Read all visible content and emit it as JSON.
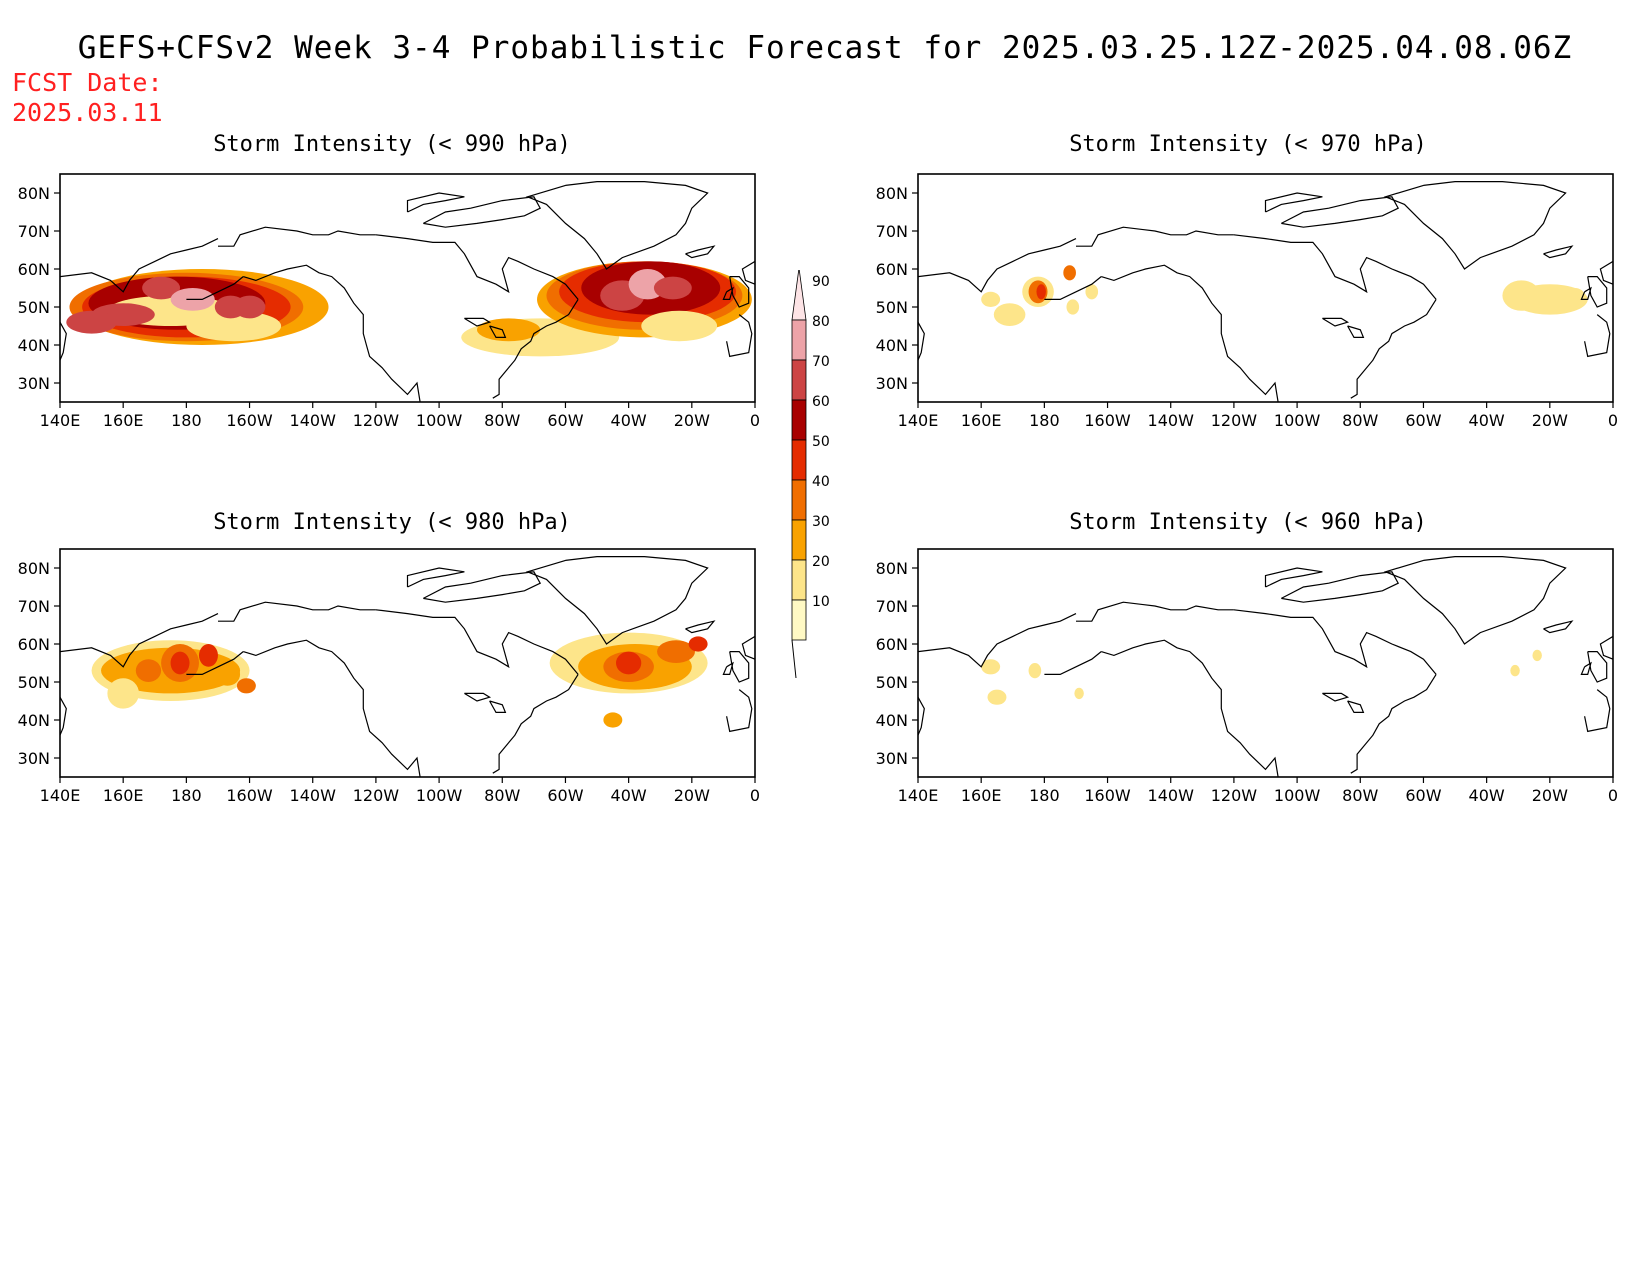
{
  "title": "GEFS+CFSv2 Week 3-4 Probabilistic Forecast for 2025.03.25.12Z-2025.04.08.06Z",
  "forecast_date": {
    "label": "FCST Date:",
    "value": "2025.03.11"
  },
  "lon_labels": [
    "140E",
    "160E",
    "180",
    "160W",
    "140W",
    "120W",
    "100W",
    "80W",
    "60W",
    "40W",
    "20W",
    "0"
  ],
  "lat_labels": [
    "80N",
    "70N",
    "60N",
    "50N",
    "40N",
    "30N"
  ],
  "panels": [
    {
      "title": "Storm Intensity (< 990 hPa)",
      "id": "p990"
    },
    {
      "title": "Storm Intensity (< 970 hPa)",
      "id": "p970"
    },
    {
      "title": "Storm Intensity (< 980 hPa)",
      "id": "p980"
    },
    {
      "title": "Storm Intensity (< 960 hPa)",
      "id": "p960"
    }
  ],
  "colorbar": {
    "levels": [
      "10",
      "20",
      "30",
      "40",
      "50",
      "60",
      "70",
      "80",
      "90"
    ],
    "colors": [
      "#fff9c4",
      "#fde58a",
      "#f9a200",
      "#f06e00",
      "#e52c00",
      "#a80000",
      "#cc4444",
      "#eda3a8",
      "#fde4e6"
    ]
  }
}
